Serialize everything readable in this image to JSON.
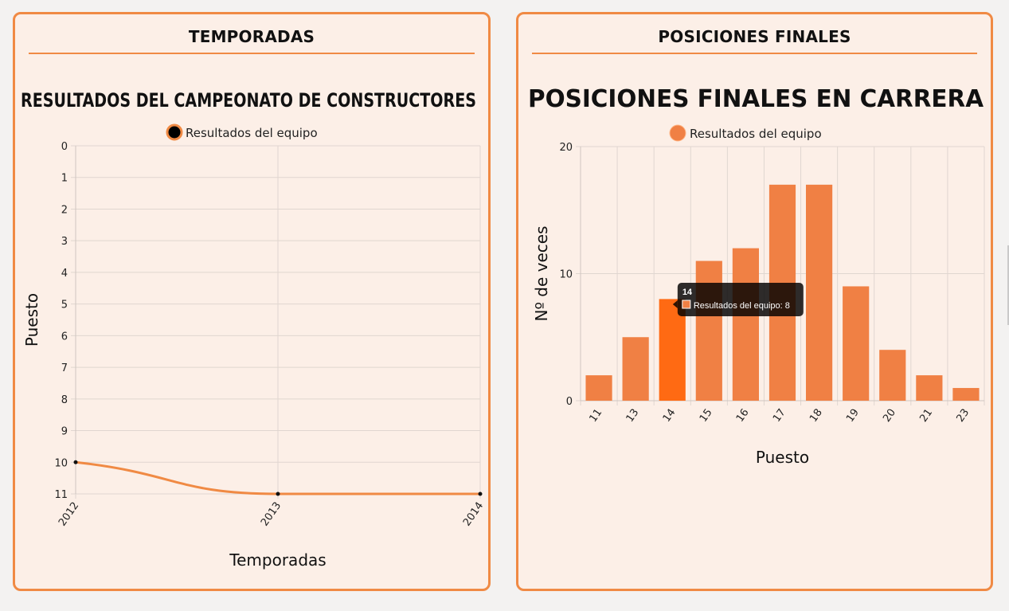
{
  "panels": {
    "left": {
      "header": "TEMPORADAS"
    },
    "right": {
      "header": "POSICIONES FINALES"
    }
  },
  "colors": {
    "accent": "#f08a44",
    "bar": "#f08044",
    "bar_hover": "#ff6a13",
    "point": "#111111"
  },
  "chart_data": [
    {
      "type": "line",
      "title": "RESULTADOS DEL CAMPEONATO DE CONSTRUCTORES",
      "legend": "Resultados del equipo",
      "legend_position": "top",
      "xlabel": "Temporadas",
      "ylabel": "Puesto",
      "categories": [
        "2012",
        "2013",
        "2014"
      ],
      "series": [
        {
          "name": "Resultados del equipo",
          "values": [
            10,
            11,
            11
          ]
        }
      ],
      "ylim": [
        0,
        11
      ],
      "y_reversed": true,
      "yticks": [
        0,
        1,
        2,
        3,
        4,
        5,
        6,
        7,
        8,
        9,
        10,
        11
      ],
      "grid": true
    },
    {
      "type": "bar",
      "title": "POSICIONES FINALES EN CARRERA",
      "legend": "Resultados del equipo",
      "legend_position": "top",
      "xlabel": "Puesto",
      "ylabel": "Nº de veces",
      "categories": [
        "11",
        "13",
        "14",
        "15",
        "16",
        "17",
        "18",
        "19",
        "20",
        "21",
        "23"
      ],
      "series": [
        {
          "name": "Resultados del equipo",
          "values": [
            2,
            5,
            8,
            11,
            12,
            17,
            17,
            9,
            4,
            2,
            1
          ]
        }
      ],
      "ylim": [
        0,
        20
      ],
      "yticks": [
        0,
        10,
        20
      ],
      "grid": true,
      "tooltip": {
        "title": "14",
        "text": "Resultados del equipo: 8",
        "category": "14"
      }
    }
  ]
}
